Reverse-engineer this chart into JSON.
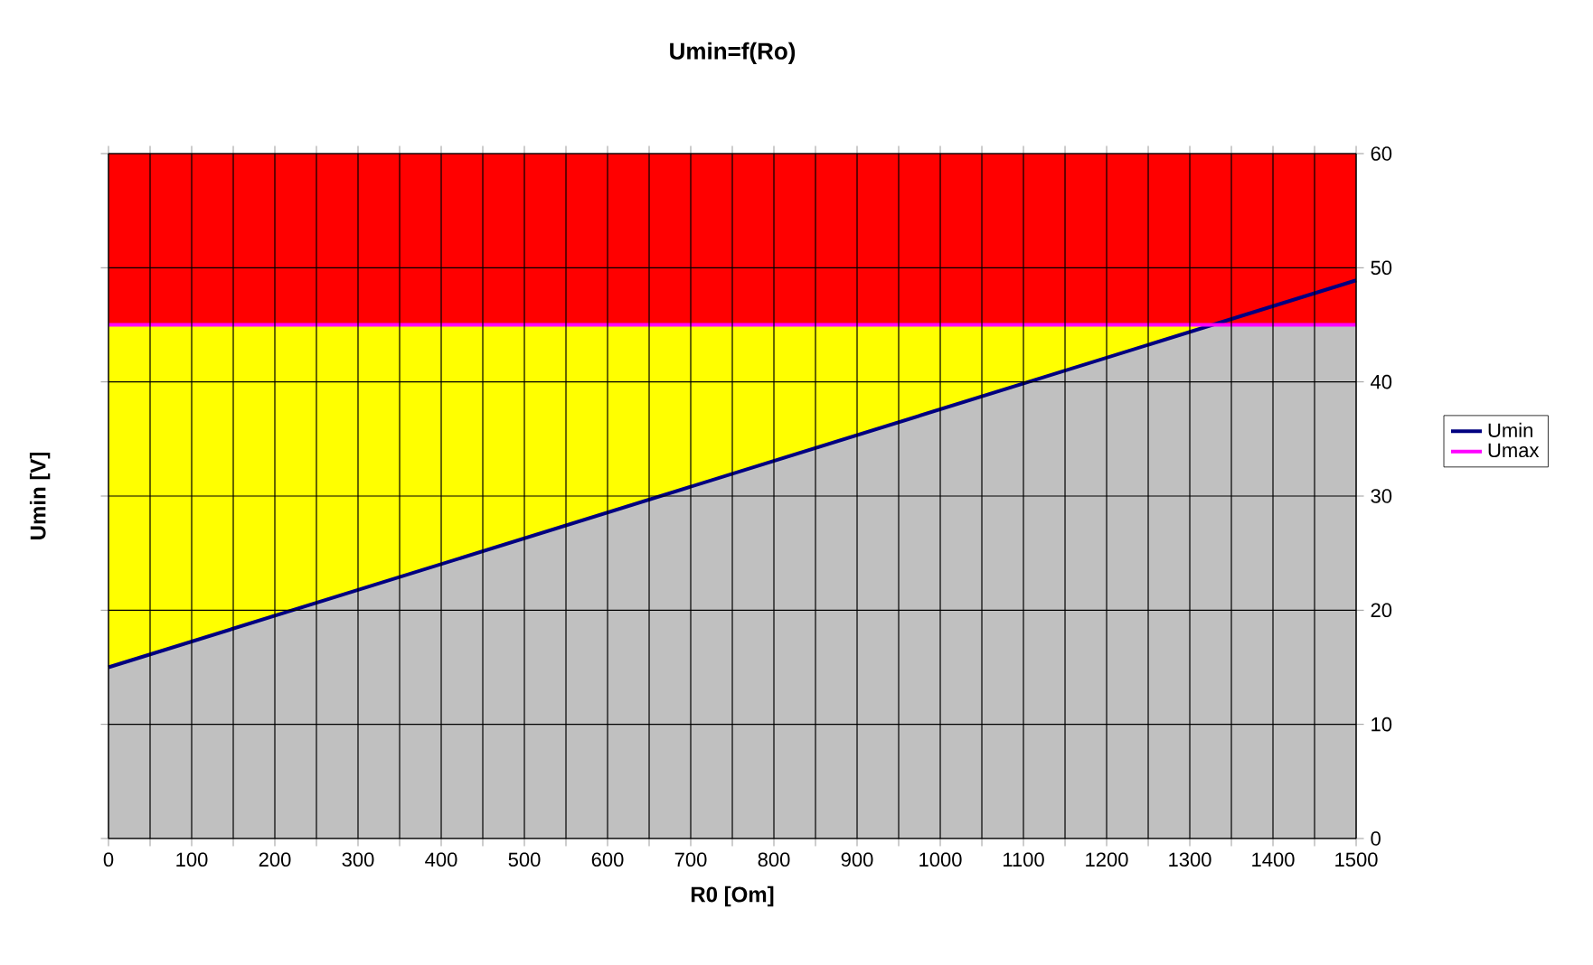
{
  "chart_data": {
    "type": "area",
    "title": "Umin=f(Ro)",
    "xlabel": "R0 [Om]",
    "ylabel": "Umin [V]",
    "stacked": true,
    "series": [
      {
        "color": "#c0c0c0",
        "x": [
          0,
          1330,
          1500
        ],
        "values": [
          15,
          45,
          45
        ]
      },
      {
        "color": "#ffff00",
        "x": [
          0,
          1330,
          1500
        ],
        "values": [
          30,
          0,
          0
        ]
      },
      {
        "color": "#ff0000",
        "x": [
          0,
          1330,
          1500
        ],
        "values": [
          15,
          15,
          15
        ]
      },
      {
        "type": "line",
        "name": "Umin",
        "color": "#000080",
        "x": [
          0,
          1500
        ],
        "values": [
          15,
          48.9
        ]
      },
      {
        "type": "line",
        "name": "Umax",
        "color": "#ff00ff",
        "x": [
          0,
          1500
        ],
        "values": [
          45,
          45
        ]
      }
    ],
    "xlim": [
      0,
      1500
    ],
    "ylim": [
      0,
      60
    ],
    "xticks": [
      0,
      {
        "value": 50,
        "label": null
      },
      100,
      {
        "value": 150,
        "label": null
      },
      200,
      {
        "value": 250,
        "label": null
      },
      300,
      {
        "value": 350,
        "label": null
      },
      400,
      {
        "value": 450,
        "label": null
      },
      500,
      {
        "value": 550,
        "label": null
      },
      600,
      {
        "value": 650,
        "label": null
      },
      700,
      {
        "value": 750,
        "label": null
      },
      800,
      {
        "value": 850,
        "label": null
      },
      900,
      {
        "value": 950,
        "label": null
      },
      1000,
      {
        "value": 1050,
        "label": null
      },
      1100,
      {
        "value": 1150,
        "label": null
      },
      1200,
      {
        "value": 1250,
        "label": null
      },
      1300,
      {
        "value": 1350,
        "label": null
      },
      1400,
      {
        "value": 1450,
        "label": null
      },
      1500
    ],
    "yticks": [
      0,
      10,
      20,
      30,
      40,
      50,
      60
    ],
    "grid": true,
    "legend": "right",
    "marker": "none",
    "line_style": "solid"
  }
}
